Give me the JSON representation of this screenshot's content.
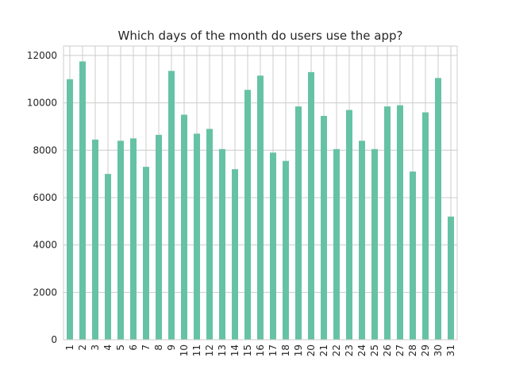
{
  "chart_data": {
    "type": "bar",
    "title": "Which days of the month do users use the app?",
    "xlabel": "",
    "ylabel": "",
    "categories": [
      "1",
      "2",
      "3",
      "4",
      "5",
      "6",
      "7",
      "8",
      "9",
      "10",
      "11",
      "12",
      "13",
      "14",
      "15",
      "16",
      "17",
      "18",
      "19",
      "20",
      "21",
      "22",
      "23",
      "24",
      "25",
      "26",
      "27",
      "28",
      "29",
      "30",
      "31"
    ],
    "values": [
      11000,
      11750,
      8450,
      7000,
      8400,
      8500,
      7300,
      8650,
      11350,
      9500,
      8700,
      8900,
      8050,
      7200,
      10550,
      11150,
      7900,
      7550,
      9850,
      11300,
      9450,
      8050,
      9700,
      8400,
      8050,
      9850,
      9900,
      7100,
      9600,
      11050,
      5200
    ],
    "ylim": [
      0,
      12400
    ],
    "yticks": [
      0,
      2000,
      4000,
      6000,
      8000,
      10000,
      12000
    ],
    "grid": true,
    "color": "#66c2a5",
    "grid_color": "#cccccc"
  }
}
